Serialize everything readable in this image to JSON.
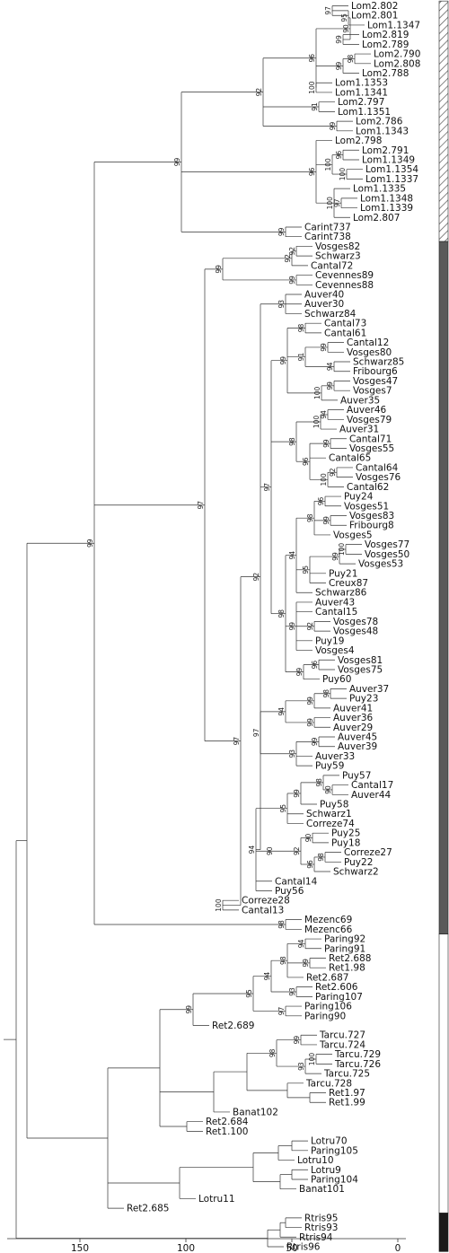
{
  "tree": {
    "leaves": [
      "Lom2.802",
      "Lom2.801",
      "Lom1.1347",
      "Lom2.819",
      "Lom2.789",
      "Lom2.790",
      "Lom2.808",
      "Lom2.788",
      "Lom1.1353",
      "Lom1.1341",
      "Lom2.797",
      "Lom1.1351",
      "Lom2.786",
      "Lom1.1343",
      "Lom2.798",
      "Lom2.791",
      "Lom1.1349",
      "Lom1.1354",
      "Lom1.1337",
      "Lom1.1335",
      "Lom1.1348",
      "Lom1.1339",
      "Lom2.807",
      "Carint737",
      "Carint738",
      "Vosges82",
      "Schwarz3",
      "Cantal72",
      "Cevennes89",
      "Cevennes88",
      "Auver40",
      "Auver30",
      "Schwarz84",
      "Cantal73",
      "Cantal61",
      "Cantal12",
      "Vosges80",
      "Schwarz85",
      "Fribourg6",
      "Vosges47",
      "Vosges7",
      "Auver35",
      "Auver46",
      "Vosges79",
      "Auver31",
      "Cantal71",
      "Vosges55",
      "Cantal65",
      "Cantal64",
      "Vosges76",
      "Cantal62",
      "Puy24",
      "Vosges51",
      "Vosges83",
      "Fribourg8",
      "Vosges5",
      "Vosges77",
      "Vosges50",
      "Vosges53",
      "Puy21",
      "Creux87",
      "Schwarz86",
      "Auver43",
      "Cantal15",
      "Vosges78",
      "Vosges48",
      "Puy19",
      "Vosges4",
      "Vosges81",
      "Vosges75",
      "Puy60",
      "Auver37",
      "Puy23",
      "Auver41",
      "Auver36",
      "Auver29",
      "Auver45",
      "Auver39",
      "Auver33",
      "Puy59",
      "Puy57",
      "Cantal17",
      "Auver44",
      "Puy58",
      "Schwarz1",
      "Correze74",
      "Puy25",
      "Puy18",
      "Correze27",
      "Puy22",
      "Schwarz2",
      "Cantal14",
      "Puy56",
      "Correze28",
      "Cantal13",
      "Mezenc69",
      "Mezenc66",
      "Paring92",
      "Paring91",
      "Ret2.688",
      "Ret1.98",
      "Ret2.687",
      "Ret2.606",
      "Paring107",
      "Paring106",
      "Paring90",
      "Ret2.689",
      "Tarcu.727",
      "Tarcu.724",
      "Tarcu.729",
      "Tarcu.726",
      "Tarcu.725",
      "Tarcu.728",
      "Ret1.97",
      "Ret1.99",
      "Banat102",
      "Ret2.684",
      "Ret1.100",
      "Lotru70",
      "Paring105",
      "Lotru10",
      "Lotru9",
      "Paring104",
      "Banat101",
      "Lotru11",
      "Ret2.685",
      "Rtris95",
      "Rtris93",
      "Rtris94",
      "Rtris96"
    ],
    "bootstrap": [
      "97",
      "95",
      "99",
      "90",
      "98",
      "99",
      "100",
      "96",
      "91",
      "99",
      "92",
      "96",
      "100",
      "100",
      "97",
      "100",
      "96",
      "99",
      "99",
      "92",
      "92",
      "99",
      "99",
      "93",
      "98",
      "99",
      "94",
      "91",
      "99",
      "100",
      "99",
      "94",
      "100",
      "99",
      "92",
      "100",
      "96",
      "98",
      "96",
      "99",
      "98",
      "100",
      "99",
      "95",
      "94",
      "92",
      "99",
      "96",
      "99",
      "98",
      "97",
      "98",
      "99",
      "99",
      "94",
      "99",
      "93",
      "97",
      "90",
      "98",
      "99",
      "95",
      "90",
      "98",
      "96",
      "92",
      "90",
      "94",
      "92",
      "100",
      "97",
      "97",
      "98",
      "99",
      "94",
      "99",
      "98",
      "93",
      "94",
      "97",
      "95",
      "99",
      "99",
      "100",
      "93",
      "98"
    ]
  },
  "x_axis": {
    "ticks": [
      {
        "value": 150,
        "label": "150"
      },
      {
        "value": 100,
        "label": "100"
      },
      {
        "value": 50,
        "label": "50"
      },
      {
        "value": 0,
        "label": "0"
      }
    ]
  },
  "groups": [
    {
      "from": "Lom2.802",
      "to": "Carint738",
      "fill": "hatch"
    },
    {
      "from": "Vosges82",
      "to": "Mezenc66",
      "fill": "#5a5a5a"
    },
    {
      "from": "Paring92",
      "to": "Ret2.685",
      "fill": "#ffffff"
    },
    {
      "from": "Rtris95",
      "to": "Rtris96",
      "fill": "#1a1a1a"
    }
  ],
  "colors": {
    "branch": "#333333",
    "text": "#111111"
  }
}
